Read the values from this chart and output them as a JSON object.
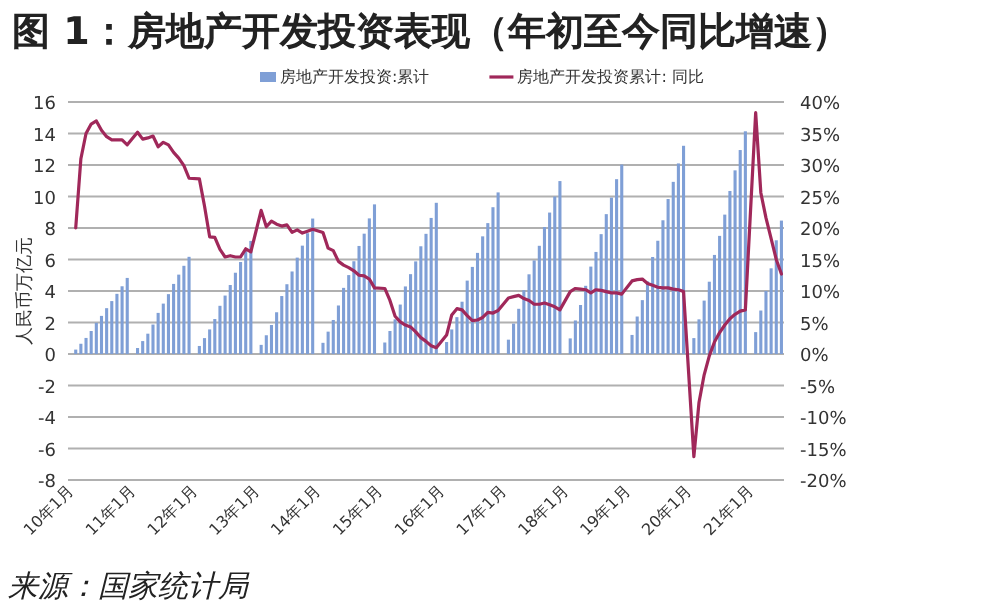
{
  "chart_data": {
    "type": "bar",
    "title": "图 1：房地产开发投资表现（年初至今同比增速）",
    "ylabel": "人民币万亿元",
    "categories": [
      "10年1月",
      null,
      null,
      null,
      null,
      null,
      null,
      null,
      null,
      null,
      null,
      null,
      "11年1月",
      null,
      null,
      null,
      null,
      null,
      null,
      null,
      null,
      null,
      null,
      null,
      "12年1月",
      null,
      null,
      null,
      null,
      null,
      null,
      null,
      null,
      null,
      null,
      null,
      "13年1月",
      null,
      null,
      null,
      null,
      null,
      null,
      null,
      null,
      null,
      null,
      null,
      "14年1月",
      null,
      null,
      null,
      null,
      null,
      null,
      null,
      null,
      null,
      null,
      null,
      "15年1月",
      null,
      null,
      null,
      null,
      null,
      null,
      null,
      null,
      null,
      null,
      null,
      "16年1月",
      null,
      null,
      null,
      null,
      null,
      null,
      null,
      null,
      null,
      null,
      null,
      "17年1月",
      null,
      null,
      null,
      null,
      null,
      null,
      null,
      null,
      null,
      null,
      null,
      "18年1月",
      null,
      null,
      null,
      null,
      null,
      null,
      null,
      null,
      null,
      null,
      null,
      "19年1月",
      null,
      null,
      null,
      null,
      null,
      null,
      null,
      null,
      null,
      null,
      null,
      "20年1月",
      null,
      null,
      null,
      null,
      null,
      null,
      null,
      null,
      null,
      null,
      null,
      "21年1月",
      null,
      null,
      null,
      null,
      null,
      null
    ],
    "series": [
      {
        "name": "房地产开发投资:累计",
        "color": "#7f9fd6",
        "values": [
          null,
          0.28,
          0.65,
          1.02,
          1.46,
          1.98,
          2.42,
          2.91,
          3.36,
          3.82,
          4.3,
          4.83,
          null,
          0.38,
          0.82,
          1.29,
          1.87,
          2.61,
          3.2,
          3.8,
          4.45,
          5.04,
          5.6,
          6.17,
          null,
          0.51,
          1.01,
          1.56,
          2.22,
          3.06,
          3.71,
          4.38,
          5.16,
          5.84,
          6.52,
          7.18,
          null,
          0.58,
          1.19,
          1.84,
          2.65,
          3.68,
          4.43,
          5.24,
          6.12,
          6.88,
          7.67,
          8.6,
          null,
          0.71,
          1.42,
          2.16,
          3.08,
          4.2,
          5.01,
          5.89,
          6.86,
          7.64,
          8.61,
          9.5,
          null,
          0.73,
          1.46,
          2.2,
          3.14,
          4.29,
          5.07,
          5.88,
          6.84,
          7.63,
          8.64,
          9.6,
          null,
          0.76,
          1.56,
          2.34,
          3.32,
          4.66,
          5.53,
          6.42,
          7.47,
          8.31,
          9.32,
          10.26,
          null,
          0.91,
          1.93,
          2.87,
          4.05,
          5.06,
          5.94,
          6.87,
          8.06,
          8.98,
          10.0,
          10.98,
          null,
          0.99,
          2.13,
          3.11,
          4.33,
          5.55,
          6.48,
          7.61,
          8.88,
          9.93,
          11.1,
          12.03,
          null,
          1.21,
          2.38,
          3.42,
          4.61,
          6.16,
          7.19,
          8.49,
          9.84,
          10.93,
          12.1,
          13.22,
          null,
          1.01,
          2.2,
          3.39,
          4.59,
          6.29,
          7.5,
          8.85,
          10.35,
          11.66,
          12.95,
          14.14,
          null,
          1.39,
          2.76,
          4.0,
          5.44,
          7.22,
          8.47
        ]
      },
      {
        "name": "房地产开发投资累计: 同比",
        "type": "line",
        "axis": "y2",
        "color": "#a0285a",
        "values": [
          null,
          20,
          31,
          35,
          36.5,
          37,
          35.5,
          34.5,
          34,
          34,
          34,
          33.2,
          null,
          35.2,
          34.1,
          34.3,
          34.6,
          32.9,
          33.6,
          33.2,
          32,
          31.1,
          29.9,
          27.9,
          null,
          27.8,
          23.5,
          18.6,
          18.5,
          16.6,
          15.4,
          15.6,
          15.4,
          15.4,
          16.7,
          16.2,
          null,
          22.8,
          20.2,
          21.1,
          20.6,
          20.3,
          20.5,
          19.3,
          19.7,
          19.2,
          19.5,
          19.8,
          null,
          19.3,
          16.8,
          16.4,
          14.7,
          14.1,
          13.7,
          13.2,
          12.5,
          12.4,
          11.9,
          10.5,
          null,
          10.4,
          8.5,
          6,
          5.1,
          4.6,
          4.3,
          3.5,
          2.6,
          2,
          1.3,
          1,
          null,
          3,
          6.2,
          7.2,
          7,
          6.1,
          5.3,
          5.4,
          5.8,
          6.6,
          6.5,
          6.9,
          null,
          8.9,
          9.1,
          9.3,
          8.8,
          8.5,
          7.9,
          7.9,
          8.1,
          7.8,
          7.5,
          7,
          null,
          9.9,
          10.4,
          10.3,
          10.2,
          9.7,
          10.2,
          10.1,
          9.9,
          9.7,
          9.7,
          9.5,
          null,
          11.6,
          11.8,
          11.9,
          11.2,
          10.9,
          10.6,
          10.5,
          10.5,
          10.3,
          10.2,
          9.9,
          null,
          -16.3,
          -7.7,
          -3.3,
          -0.3,
          1.9,
          3.4,
          4.6,
          5.6,
          6.3,
          6.8,
          7,
          null,
          38.3,
          25.6,
          21.6,
          18.3,
          15,
          12.7
        ]
      }
    ],
    "ylim": [
      -8,
      16
    ],
    "yticks": [
      -8,
      -6,
      -4,
      -2,
      0,
      2,
      4,
      6,
      8,
      10,
      12,
      14,
      16
    ],
    "y2lim": [
      -20,
      40
    ],
    "y2ticks": [
      {
        "value": -20,
        "label": "-20%"
      },
      {
        "value": -15,
        "label": "-15%"
      },
      {
        "value": -10,
        "label": "-10%"
      },
      {
        "value": -5,
        "label": "-5%"
      },
      {
        "value": 0,
        "label": "0%"
      },
      {
        "value": 5,
        "label": "5%"
      },
      {
        "value": 10,
        "label": "10%"
      },
      {
        "value": 15,
        "label": "15%"
      },
      {
        "value": 20,
        "label": "20%"
      },
      {
        "value": 25,
        "label": "25%"
      },
      {
        "value": 30,
        "label": "30%"
      },
      {
        "value": 35,
        "label": "35%"
      },
      {
        "value": 40,
        "label": "40%"
      }
    ],
    "grid": "y",
    "legend": "top",
    "annotations": [
      "来源：国家统计局"
    ]
  }
}
